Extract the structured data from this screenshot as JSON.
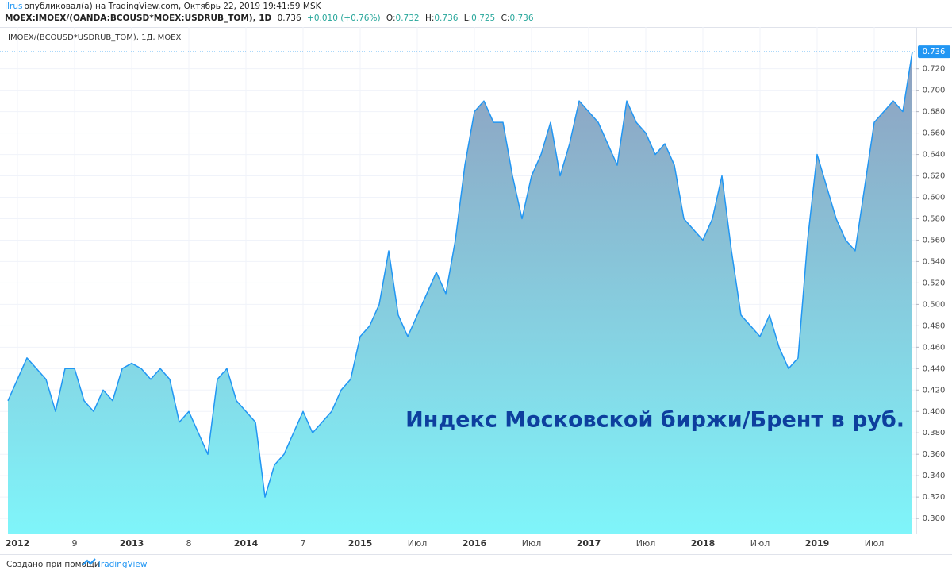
{
  "header": {
    "author": "Ilrus",
    "published": "опубликовал(а) на TradingView.com, Октябрь 22, 2019 19:41:59 MSK",
    "symbol": "MOEX:IMOEX/(OANDA:BCOUSD*MOEX:USDRUB_TOM), 1D",
    "last": "0.736",
    "change": "+0.010 (+0.76%)",
    "open_label": "O:",
    "open": "0.732",
    "high_label": "H:",
    "high": "0.736",
    "low_label": "L:",
    "low": "0.725",
    "close_label": "C:",
    "close": "0.736"
  },
  "footer": {
    "text": "Создано при помощи",
    "brand": "TradingView"
  },
  "chart_data": {
    "type": "area",
    "legend": "IMOEX/(BCOUSD*USDRUB_TOM), 1Д, MOEX",
    "annotation": "Индекс Московской биржи/Брент в руб.",
    "color": "#2196f3",
    "categories": [
      null,
      "2012",
      null,
      null,
      null,
      null,
      null,
      "9",
      null,
      null,
      null,
      null,
      null,
      "2013",
      null,
      null,
      null,
      null,
      null,
      "8",
      null,
      null,
      null,
      null,
      null,
      "2014",
      null,
      null,
      null,
      null,
      null,
      "7",
      null,
      null,
      null,
      null,
      null,
      "2015",
      null,
      null,
      null,
      null,
      null,
      "Июл",
      null,
      null,
      null,
      null,
      null,
      "2016",
      null,
      null,
      null,
      null,
      null,
      "Июл",
      null,
      null,
      null,
      null,
      null,
      "2017",
      null,
      null,
      null,
      null,
      null,
      "Июл",
      null,
      null,
      null,
      null,
      null,
      "2018",
      null,
      null,
      null,
      null,
      null,
      "Июл",
      null,
      null,
      null,
      null,
      null,
      "2019",
      null,
      null,
      null,
      null,
      null,
      "Июл",
      null,
      null,
      null,
      null
    ],
    "values": [
      0.41,
      0.43,
      0.45,
      0.44,
      0.43,
      0.4,
      0.44,
      0.44,
      0.41,
      0.4,
      0.42,
      0.41,
      0.44,
      0.445,
      0.44,
      0.43,
      0.44,
      0.43,
      0.39,
      0.4,
      0.38,
      0.36,
      0.43,
      0.44,
      0.41,
      0.4,
      0.39,
      0.32,
      0.35,
      0.36,
      0.38,
      0.4,
      0.38,
      0.39,
      0.4,
      0.42,
      0.43,
      0.47,
      0.48,
      0.5,
      0.55,
      0.49,
      0.47,
      0.49,
      0.51,
      0.53,
      0.51,
      0.56,
      0.63,
      0.68,
      0.69,
      0.67,
      0.67,
      0.62,
      0.58,
      0.62,
      0.64,
      0.67,
      0.62,
      0.65,
      0.69,
      0.68,
      0.67,
      0.65,
      0.63,
      0.69,
      0.67,
      0.66,
      0.64,
      0.65,
      0.63,
      0.58,
      0.57,
      0.56,
      0.58,
      0.62,
      0.55,
      0.49,
      0.48,
      0.47,
      0.49,
      0.46,
      0.44,
      0.45,
      0.56,
      0.64,
      0.61,
      0.58,
      0.56,
      0.55,
      0.61,
      0.67,
      0.68,
      0.69,
      0.68,
      0.736
    ],
    "ylim": [
      0.286,
      0.742
    ],
    "yticks": [
      {
        "value": 0.3,
        "label": "0.300"
      },
      {
        "value": 0.32,
        "label": "0.320"
      },
      {
        "value": 0.34,
        "label": "0.340"
      },
      {
        "value": 0.36,
        "label": "0.360"
      },
      {
        "value": 0.38,
        "label": "0.380"
      },
      {
        "value": 0.4,
        "label": "0.400"
      },
      {
        "value": 0.42,
        "label": "0.420"
      },
      {
        "value": 0.44,
        "label": "0.440"
      },
      {
        "value": 0.46,
        "label": "0.460"
      },
      {
        "value": 0.48,
        "label": "0.480"
      },
      {
        "value": 0.5,
        "label": "0.500"
      },
      {
        "value": 0.52,
        "label": "0.520"
      },
      {
        "value": 0.54,
        "label": "0.540"
      },
      {
        "value": 0.56,
        "label": "0.560"
      },
      {
        "value": 0.58,
        "label": "0.580"
      },
      {
        "value": 0.6,
        "label": "0.600"
      },
      {
        "value": 0.62,
        "label": "0.620"
      },
      {
        "value": 0.64,
        "label": "0.640"
      },
      {
        "value": 0.66,
        "label": "0.660"
      },
      {
        "value": 0.68,
        "label": "0.680"
      },
      {
        "value": 0.7,
        "label": "0.700"
      },
      {
        "value": 0.72,
        "label": "0.720"
      }
    ],
    "grid": true
  }
}
